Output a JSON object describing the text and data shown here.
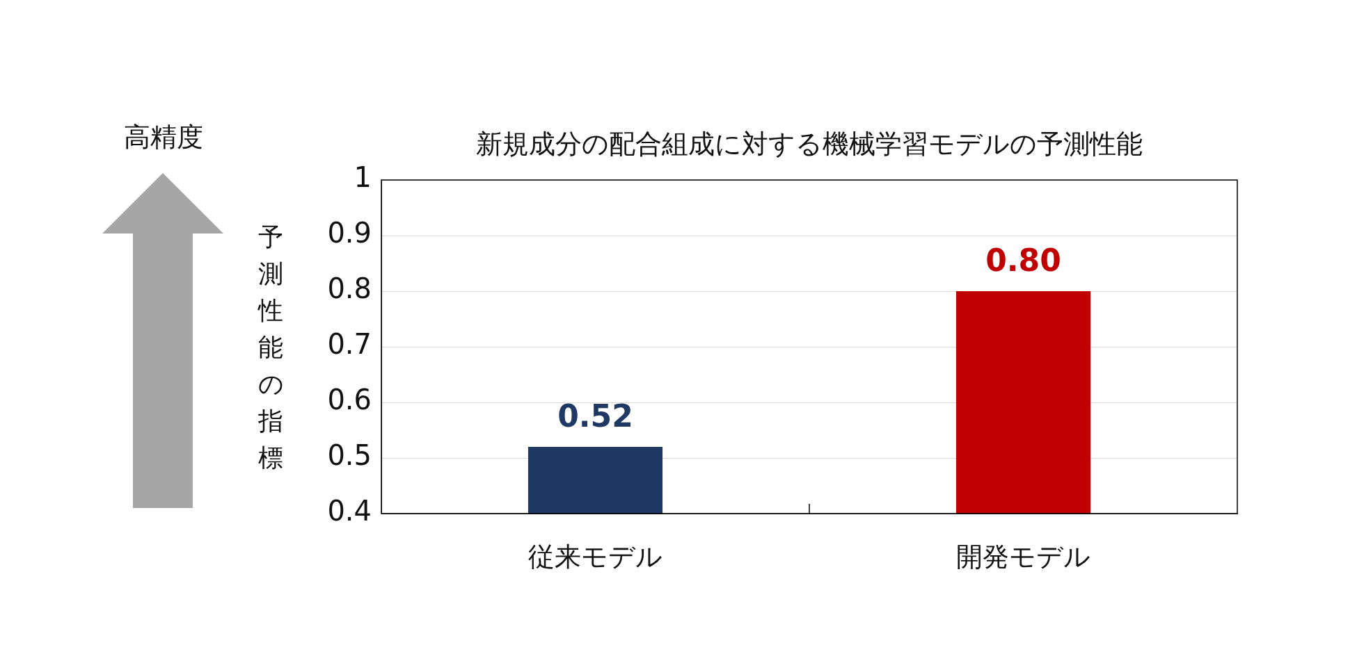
{
  "chart_data": {
    "type": "bar",
    "title": "新規成分の配合組成に対する機械学習モデルの予測性能",
    "ylabel": "予測性能の指標",
    "categories": [
      "従来モデル",
      "開発モデル"
    ],
    "values": [
      0.52,
      0.8
    ],
    "colors": [
      "#203864",
      "#c00000"
    ],
    "value_labels": [
      "0.52",
      "0.80"
    ],
    "ylim": [
      0.4,
      1
    ],
    "yticks": [
      0.4,
      0.5,
      0.6,
      0.7,
      0.8,
      0.9,
      1
    ],
    "grid": "y",
    "legend": false,
    "annotations": [
      "高精度"
    ]
  }
}
